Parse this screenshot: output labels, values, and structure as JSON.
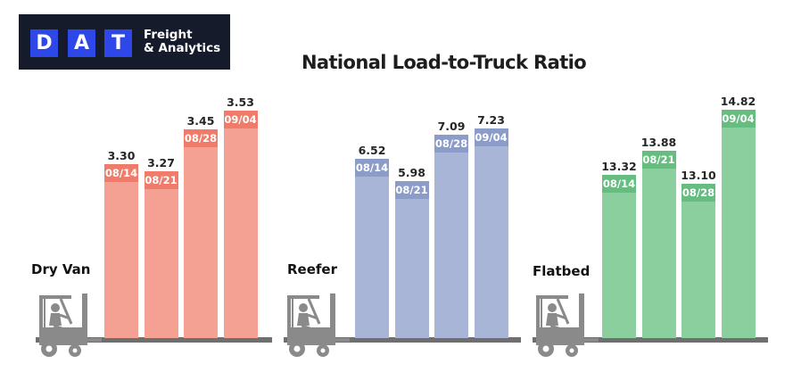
{
  "logo": {
    "letters": [
      "D",
      "A",
      "T"
    ],
    "line1": "Freight",
    "line2": "& Analytics",
    "background": "#161b2c",
    "accent": "#2d47e8"
  },
  "title": "National Load-to-Truck Ratio",
  "chart_data": [
    {
      "type": "bar",
      "title": "Dry Van",
      "categories": [
        "08/14",
        "08/21",
        "08/28",
        "09/04"
      ],
      "values": [
        3.3,
        3.27,
        3.45,
        3.53
      ],
      "value_labels": [
        "3.30",
        "3.27",
        "3.45",
        "3.53"
      ],
      "color": "#f4a193",
      "band_color": "#f07b6b",
      "grid": false,
      "legend": "none"
    },
    {
      "type": "bar",
      "title": "Reefer",
      "categories": [
        "08/14",
        "08/21",
        "08/28",
        "09/04"
      ],
      "values": [
        6.52,
        5.98,
        7.09,
        7.23
      ],
      "value_labels": [
        "6.52",
        "5.98",
        "7.09",
        "7.23"
      ],
      "color": "#a9b5d7",
      "band_color": "#8c9cc9",
      "grid": false,
      "legend": "none"
    },
    {
      "type": "bar",
      "title": "Flatbed",
      "categories": [
        "08/14",
        "08/21",
        "08/28",
        "09/04"
      ],
      "values": [
        13.32,
        13.88,
        13.1,
        14.82
      ],
      "value_labels": [
        "13.32",
        "13.88",
        "13.10",
        "14.82"
      ],
      "color": "#8ccf9e",
      "band_color": "#66bd80",
      "grid": false,
      "legend": "none"
    }
  ]
}
